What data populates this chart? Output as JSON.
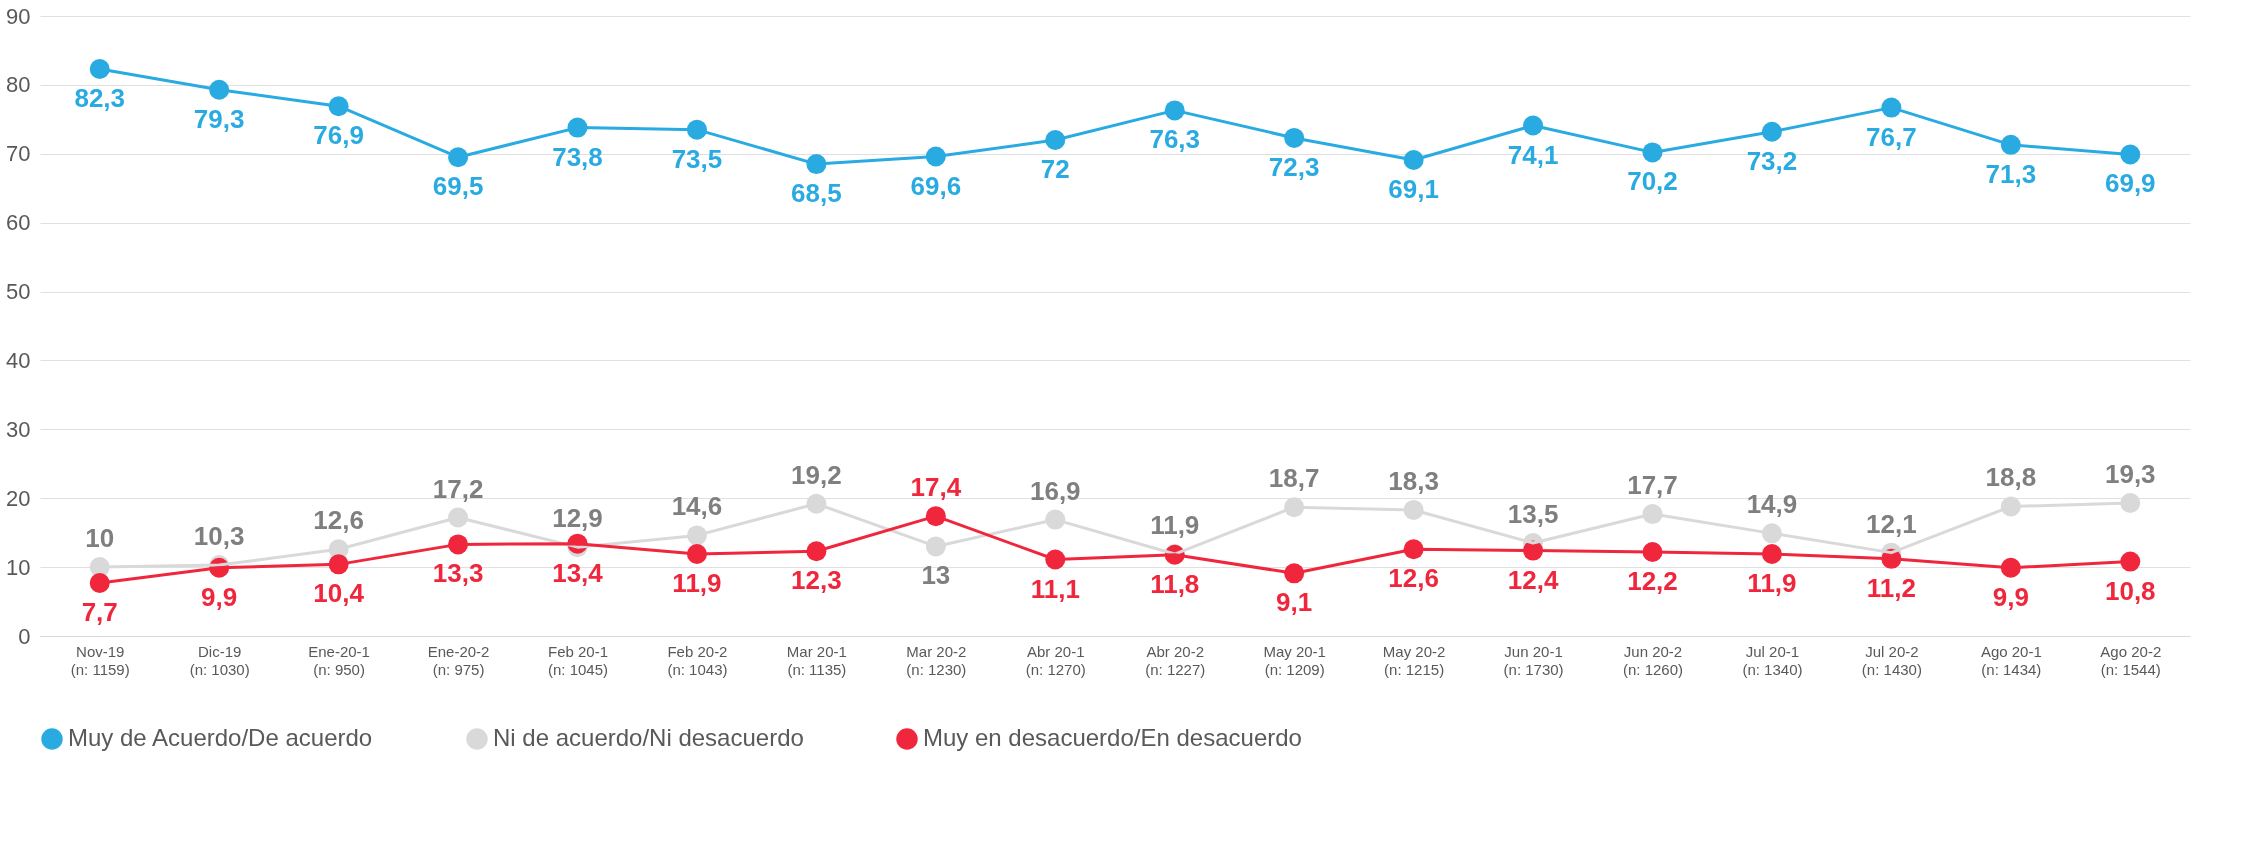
{
  "chart_data": {
    "type": "line",
    "categories": [
      "Nov-19\n(n: 1159)",
      "Dic-19\n(n: 1030)",
      "Ene-20-1\n(n: 950)",
      "Ene-20-2\n(n: 975)",
      "Feb 20-1\n(n: 1045)",
      "Feb 20-2\n(n: 1043)",
      "Mar 20-1\n(n: 1135)",
      "Mar 20-2\n(n: 1230)",
      "Abr 20-1\n(n: 1270)",
      "Abr 20-2\n(n: 1227)",
      "May 20-1\n(n: 1209)",
      "May 20-2\n(n: 1215)",
      "Jun 20-1\n(n: 1730)",
      "Jun 20-2\n(n: 1260)",
      "Jul 20-1\n(n: 1340)",
      "Jul 20-2\n(n: 1430)",
      "Ago 20-1\n(n: 1434)",
      "Ago 20-2\n(n: 1544)"
    ],
    "series": [
      {
        "name": "Muy de Acuerdo/De acuerdo",
        "color": "#29abe2",
        "values": [
          82.3,
          79.3,
          76.9,
          69.5,
          73.8,
          73.5,
          68.5,
          69.6,
          72,
          76.3,
          72.3,
          69.1,
          74.1,
          70.2,
          73.2,
          76.7,
          71.3,
          69.9
        ],
        "value_labels": [
          "82,3",
          "79,3",
          "76,9",
          "69,5",
          "73,8",
          "73,5",
          "68,5",
          "69,6",
          "72",
          "76,3",
          "72,3",
          "69,1",
          "74,1",
          "70,2",
          "73,2",
          "76,7",
          "71,3",
          "69,9"
        ]
      },
      {
        "name": "Ni de acuerdo/Ni desacuerdo",
        "color": "#d9d9d9",
        "values": [
          10,
          10.3,
          12.6,
          17.2,
          12.9,
          14.6,
          19.2,
          13,
          16.9,
          11.9,
          18.7,
          18.3,
          13.5,
          17.7,
          14.9,
          12.1,
          18.8,
          19.3
        ],
        "value_labels": [
          "10",
          "10,3",
          "12,6",
          "17,2",
          "12,9",
          "14,6",
          "19,2",
          "13",
          "16,9",
          "11,9",
          "18,7",
          "18,3",
          "13,5",
          "17,7",
          "14,9",
          "12,1",
          "18,8",
          "19,3"
        ]
      },
      {
        "name": "Muy en desacuerdo/En desacuerdo",
        "color": "#f0263c",
        "values": [
          7.7,
          9.9,
          10.4,
          13.3,
          13.4,
          11.9,
          12.3,
          17.4,
          11.1,
          11.8,
          9.1,
          12.6,
          12.4,
          12.2,
          11.9,
          11.2,
          9.9,
          10.8
        ],
        "value_labels": [
          "7,7",
          "9,9",
          "10,4",
          "13,3",
          "13,4",
          "11,9",
          "12,3",
          "17,4",
          "11,1",
          "11,8",
          "9,1",
          "12,6",
          "12,4",
          "12,2",
          "11,9",
          "11,2",
          "9,9",
          "10,8"
        ]
      }
    ],
    "ylim": [
      0,
      90
    ],
    "yticks": [
      0,
      10,
      20,
      30,
      40,
      50,
      60,
      70,
      80,
      90
    ],
    "grid": "y",
    "legend": "bottom",
    "marker": "circle",
    "line_style": "solid"
  }
}
